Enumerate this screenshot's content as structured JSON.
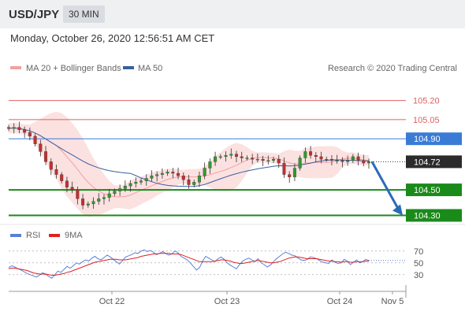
{
  "header": {
    "pair": "USD/JPY",
    "timeframe": "30 MIN"
  },
  "datetime": "Monday, October 26, 2020 12:56:51 AM CET",
  "chart_data": [
    {
      "type": "candlestick",
      "title": "USD/JPY",
      "legend": [
        {
          "label": "MA 20 + Bollinger Bands",
          "color": "#f4a0a0"
        },
        {
          "label": "MA 50",
          "color": "#3a5fa0"
        }
      ],
      "credit": "Research © 2020 Trading Central",
      "ylim": [
        104.26,
        105.37
      ],
      "x_ticks": [
        "Oct 22",
        "Oct 23",
        "Oct 24",
        "Nov 5"
      ],
      "current_price": 104.72,
      "levels": [
        {
          "value": 105.2,
          "label": "105.20",
          "kind": "resistance",
          "color": "#e06060"
        },
        {
          "value": 105.05,
          "label": "105.05",
          "kind": "resistance",
          "color": "#e06060"
        },
        {
          "value": 104.9,
          "label": "104.90",
          "kind": "pivot",
          "color": "#3a7bd5"
        },
        {
          "value": 104.5,
          "label": "104.50",
          "kind": "support",
          "color": "#1a8a1a"
        },
        {
          "value": 104.3,
          "label": "104.30",
          "kind": "support",
          "color": "#1a8a1a"
        }
      ],
      "forecast": {
        "from": 104.72,
        "to": 104.3,
        "direction": "down"
      },
      "close": [
        104.98,
        104.99,
        104.97,
        104.95,
        104.92,
        104.86,
        104.8,
        104.72,
        104.66,
        104.62,
        104.57,
        104.52,
        104.5,
        104.43,
        104.38,
        104.39,
        104.41,
        104.43,
        104.44,
        104.47,
        104.49,
        104.51,
        104.53,
        104.55,
        104.56,
        104.57,
        104.59,
        104.61,
        104.62,
        104.63,
        104.64,
        104.63,
        104.61,
        104.58,
        104.54,
        104.56,
        104.61,
        104.67,
        104.72,
        104.76,
        104.76,
        104.77,
        104.78,
        104.76,
        104.75,
        104.75,
        104.74,
        104.74,
        104.73,
        104.73,
        104.74,
        104.71,
        104.62,
        104.6,
        104.67,
        104.75,
        104.8,
        104.77,
        104.76,
        104.74,
        104.74,
        104.73,
        104.73,
        104.72,
        104.73,
        104.76,
        104.73,
        104.71,
        104.72
      ]
    },
    {
      "type": "line",
      "title": "RSI",
      "series": [
        {
          "name": "RSI",
          "color": "#5b7fd6",
          "values": [
            42,
            45,
            43,
            40,
            38,
            35,
            32,
            30,
            28,
            26,
            29,
            33,
            31,
            27,
            24,
            30,
            36,
            34,
            39,
            44,
            41,
            45,
            50,
            48,
            52,
            55,
            53,
            58,
            61,
            57,
            55,
            59,
            63,
            60,
            56,
            52,
            48,
            54,
            60,
            62,
            64,
            67,
            66,
            70,
            72,
            69,
            71,
            68,
            64,
            66,
            69,
            66,
            63,
            65,
            70,
            67,
            61,
            58,
            55,
            50,
            44,
            38,
            42,
            53,
            61,
            58,
            55,
            52,
            57,
            60,
            56,
            50,
            46,
            43,
            40,
            47,
            53,
            56,
            58,
            55,
            52,
            57,
            50,
            47,
            43,
            46,
            52,
            57,
            61,
            65,
            68,
            66,
            63,
            62,
            58,
            55,
            54,
            56,
            60,
            59,
            57,
            54,
            51,
            50,
            49,
            55,
            51,
            49,
            50,
            56,
            53,
            47,
            51,
            55,
            50,
            52,
            56,
            54
          ]
        },
        {
          "name": "9MA",
          "color": "#e02020",
          "values": [
            40,
            41,
            41,
            40,
            39,
            38,
            37,
            35,
            33,
            32,
            31,
            31,
            31,
            30,
            29,
            29,
            30,
            31,
            32,
            34,
            35,
            37,
            39,
            41,
            43,
            45,
            47,
            49,
            51,
            52,
            53,
            54,
            55,
            56,
            56,
            56,
            55,
            55,
            55,
            56,
            57,
            58,
            59,
            61,
            62,
            63,
            64,
            65,
            65,
            66,
            66,
            66,
            66,
            65,
            65,
            65,
            64,
            62,
            60,
            58,
            56,
            54,
            52,
            52,
            52,
            52,
            52,
            53,
            54,
            55,
            55,
            54,
            53,
            51,
            50,
            49,
            49,
            50,
            51,
            52,
            53,
            54,
            53,
            52,
            51,
            50,
            50,
            51,
            52,
            54,
            56,
            58,
            59,
            60,
            60,
            59,
            58,
            57,
            57,
            57,
            57,
            56,
            55,
            54,
            53,
            53,
            52,
            52,
            51,
            52,
            52,
            51,
            51,
            52,
            52,
            52,
            53,
            53
          ]
        }
      ],
      "ylim": [
        15,
        75
      ],
      "y_ticks": [
        "70",
        "50",
        "30"
      ]
    }
  ]
}
